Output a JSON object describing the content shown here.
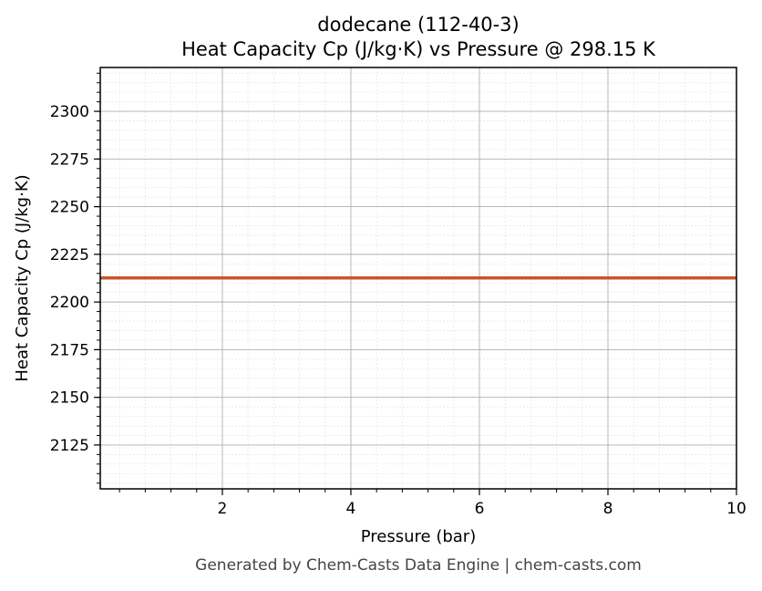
{
  "chart_data": {
    "type": "line",
    "title": "dodecane (112-40-3)",
    "subtitle": "Heat Capacity Cp (J/kg·K) vs Pressure @ 298.15 K",
    "xlabel": "Pressure (bar)",
    "ylabel": "Heat Capacity Cp (J/kg·K)",
    "xlim": [
      0.1,
      10
    ],
    "ylim": [
      2102,
      2323
    ],
    "xticks": [
      2,
      4,
      6,
      8,
      10
    ],
    "yticks": [
      2125,
      2150,
      2175,
      2200,
      2225,
      2250,
      2275,
      2300
    ],
    "grid": true,
    "series": [
      {
        "color": "#c8552b",
        "x": [
          0.1,
          10
        ],
        "y": [
          2212.6,
          2212.6
        ]
      }
    ],
    "footer": "Generated by Chem-Casts Data Engine | chem-casts.com"
  }
}
